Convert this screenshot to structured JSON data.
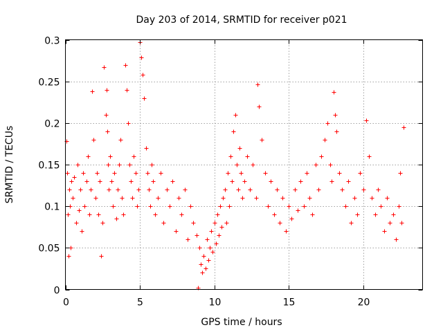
{
  "chart_data": {
    "type": "scatter",
    "title": "Day 203 of 2014, SRMTID for receiver p021",
    "xlabel": "GPS time / hours",
    "ylabel": "SRMTID / TECUs",
    "xlim": [
      0,
      24
    ],
    "ylim": [
      0,
      0.3
    ],
    "x_ticks": [
      0,
      5,
      10,
      15,
      20
    ],
    "x_tick_labels": [
      "0",
      "5",
      "10",
      "15",
      "20"
    ],
    "y_ticks": [
      0,
      0.05,
      0.1,
      0.15,
      0.2,
      0.25,
      0.3
    ],
    "y_tick_labels": [
      "0",
      "0.05",
      "0.1",
      "0.15",
      "0.2",
      "0.25",
      "0.3"
    ],
    "grid": true,
    "marker": "+",
    "color": "#ff0000",
    "series": [
      {
        "name": "SRMTID",
        "x": [
          0.05,
          0.1,
          0.15,
          0.2,
          0.25,
          0.3,
          0.35,
          0.4,
          0.5,
          0.6,
          0.7,
          0.8,
          0.9,
          1.0,
          1.1,
          1.2,
          1.3,
          1.4,
          1.5,
          1.6,
          1.7,
          1.8,
          1.9,
          2.0,
          2.1,
          2.2,
          2.3,
          2.4,
          2.5,
          2.6,
          2.7,
          2.75,
          2.8,
          2.85,
          2.9,
          3.0,
          3.1,
          3.2,
          3.3,
          3.4,
          3.5,
          3.6,
          3.7,
          3.8,
          3.9,
          4.0,
          4.1,
          4.2,
          4.3,
          4.4,
          4.5,
          4.6,
          4.7,
          4.8,
          4.9,
          5.0,
          5.1,
          5.2,
          5.3,
          5.4,
          5.5,
          5.6,
          5.7,
          5.8,
          5.9,
          6.0,
          6.2,
          6.4,
          6.6,
          6.8,
          7.0,
          7.2,
          7.4,
          7.6,
          7.8,
          8.0,
          8.2,
          8.4,
          8.6,
          8.8,
          8.9,
          9.0,
          9.1,
          9.2,
          9.3,
          9.4,
          9.5,
          9.6,
          9.7,
          9.8,
          9.9,
          10.0,
          10.1,
          10.2,
          10.3,
          10.4,
          10.5,
          10.6,
          10.7,
          10.8,
          10.9,
          11.0,
          11.1,
          11.2,
          11.3,
          11.4,
          11.5,
          11.6,
          11.7,
          11.8,
          11.9,
          12.0,
          12.2,
          12.4,
          12.6,
          12.8,
          12.9,
          13.0,
          13.2,
          13.4,
          13.6,
          13.8,
          14.0,
          14.2,
          14.4,
          14.6,
          14.8,
          15.0,
          15.2,
          15.4,
          15.6,
          15.8,
          16.0,
          16.2,
          16.4,
          16.6,
          16.8,
          17.0,
          17.2,
          17.4,
          17.6,
          17.8,
          17.9,
          18.0,
          18.1,
          18.2,
          18.4,
          18.6,
          18.8,
          19.0,
          19.2,
          19.4,
          19.6,
          19.8,
          20.0,
          20.2,
          20.4,
          20.6,
          20.8,
          21.0,
          21.2,
          21.4,
          21.6,
          21.8,
          22.0,
          22.2,
          22.4,
          22.5,
          22.6,
          22.7
        ],
        "y": [
          0.178,
          0.14,
          0.09,
          0.04,
          0.12,
          0.1,
          0.05,
          0.13,
          0.11,
          0.135,
          0.08,
          0.15,
          0.095,
          0.12,
          0.07,
          0.14,
          0.1,
          0.13,
          0.16,
          0.09,
          0.12,
          0.238,
          0.18,
          0.11,
          0.14,
          0.09,
          0.13,
          0.04,
          0.08,
          0.267,
          0.21,
          0.24,
          0.19,
          0.15,
          0.12,
          0.16,
          0.13,
          0.1,
          0.14,
          0.085,
          0.12,
          0.15,
          0.18,
          0.11,
          0.09,
          0.27,
          0.24,
          0.2,
          0.15,
          0.13,
          0.11,
          0.16,
          0.14,
          0.1,
          0.12,
          0.297,
          0.279,
          0.258,
          0.23,
          0.17,
          0.14,
          0.12,
          0.1,
          0.15,
          0.13,
          0.09,
          0.11,
          0.14,
          0.08,
          0.12,
          0.1,
          0.13,
          0.07,
          0.11,
          0.09,
          0.12,
          0.06,
          0.1,
          0.08,
          0.065,
          0.002,
          0.05,
          0.03,
          0.02,
          0.04,
          0.025,
          0.06,
          0.035,
          0.05,
          0.07,
          0.045,
          0.08,
          0.055,
          0.09,
          0.065,
          0.1,
          0.075,
          0.11,
          0.12,
          0.08,
          0.14,
          0.1,
          0.16,
          0.13,
          0.19,
          0.21,
          0.15,
          0.12,
          0.17,
          0.14,
          0.11,
          0.13,
          0.16,
          0.12,
          0.15,
          0.11,
          0.246,
          0.22,
          0.18,
          0.14,
          0.1,
          0.13,
          0.09,
          0.12,
          0.08,
          0.11,
          0.07,
          0.1,
          0.085,
          0.12,
          0.095,
          0.13,
          0.1,
          0.14,
          0.11,
          0.09,
          0.15,
          0.12,
          0.16,
          0.18,
          0.2,
          0.15,
          0.13,
          0.237,
          0.21,
          0.19,
          0.14,
          0.12,
          0.1,
          0.13,
          0.08,
          0.11,
          0.09,
          0.14,
          0.12,
          0.203,
          0.16,
          0.11,
          0.09,
          0.12,
          0.1,
          0.07,
          0.11,
          0.08,
          0.09,
          0.06,
          0.1,
          0.14,
          0.08,
          0.195
        ]
      }
    ]
  }
}
